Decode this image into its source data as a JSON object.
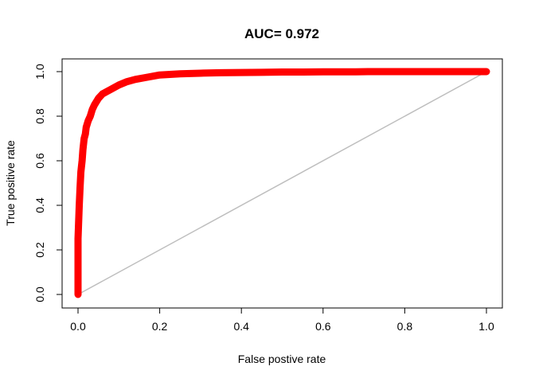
{
  "chart_data": {
    "type": "line",
    "title": "AUC= 0.972",
    "xlabel": "False postive rate",
    "ylabel": "True positive rate",
    "xlim": [
      0,
      1
    ],
    "ylim": [
      0,
      1
    ],
    "xticks": [
      "0.0",
      "0.2",
      "0.4",
      "0.6",
      "0.8",
      "1.0"
    ],
    "yticks": [
      "0.0",
      "0.2",
      "0.4",
      "0.6",
      "0.8",
      "1.0"
    ],
    "grid": false,
    "legend": "none",
    "series": [
      {
        "role": "roc-curve",
        "color": "#ff0000",
        "markers": "open-circle",
        "x": [
          0.0,
          0.0,
          0.0,
          0.0,
          0.0,
          0.0,
          0.002,
          0.003,
          0.005,
          0.007,
          0.01,
          0.012,
          0.015,
          0.018,
          0.02,
          0.025,
          0.03,
          0.035,
          0.04,
          0.05,
          0.06,
          0.07,
          0.08,
          0.1,
          0.12,
          0.14,
          0.17,
          0.2,
          0.25,
          0.3,
          0.35,
          0.4,
          0.45,
          0.5,
          0.55,
          0.6,
          0.62,
          0.64,
          0.66,
          0.68,
          0.71,
          0.72,
          0.73,
          0.74,
          0.75,
          0.8,
          0.81,
          0.82,
          0.83,
          1.0
        ],
        "y": [
          0.0,
          0.05,
          0.07,
          0.1,
          0.15,
          0.25,
          0.35,
          0.4,
          0.48,
          0.55,
          0.6,
          0.65,
          0.7,
          0.72,
          0.75,
          0.78,
          0.8,
          0.83,
          0.85,
          0.88,
          0.9,
          0.91,
          0.92,
          0.94,
          0.955,
          0.965,
          0.975,
          0.985,
          0.99,
          0.993,
          0.995,
          0.996,
          0.997,
          0.998,
          0.998,
          0.999,
          0.999,
          0.999,
          0.999,
          0.999,
          1.0,
          1.0,
          1.0,
          1.0,
          1.0,
          1.0,
          1.0,
          1.0,
          1.0,
          1.0
        ]
      },
      {
        "role": "diagonal-reference",
        "color": "#bebebe",
        "markers": "none",
        "x": [
          0,
          1
        ],
        "y": [
          0,
          1
        ]
      }
    ]
  }
}
